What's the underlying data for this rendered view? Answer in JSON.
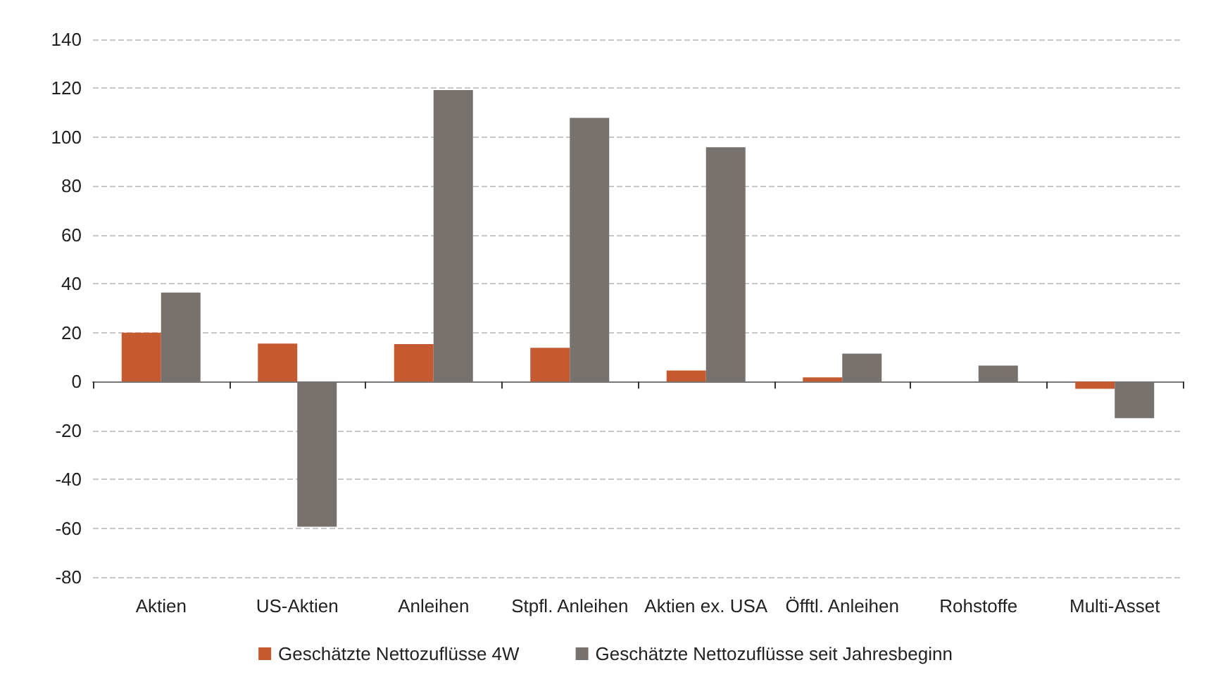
{
  "chart_data": {
    "type": "bar",
    "categories": [
      "Aktien",
      "US-Aktien",
      "Anleihen",
      "Stpfl. Anleihen",
      "Aktien ex. USA",
      "Öfftl. Anleihen",
      "Rohstoffe",
      "Multi-Asset"
    ],
    "series": [
      {
        "name": "Geschätzte Nettozuflüsse 4W",
        "color": "#c55a30",
        "values": [
          20,
          15.5,
          15.3,
          13.8,
          4.5,
          1.7,
          null,
          -3
        ]
      },
      {
        "name": "Geschätzte Nettozuflüsse seit Jahresbeginn",
        "color": "#77726e",
        "values": [
          36.4,
          -59.4,
          119.3,
          107.9,
          95.9,
          11.4,
          6.5,
          -15
        ]
      }
    ],
    "ylim": [
      -80,
      140
    ],
    "yticks": [
      -80,
      -60,
      -40,
      -20,
      0,
      20,
      40,
      60,
      80,
      100,
      120,
      140
    ],
    "grid": "y",
    "legend": "bottom"
  }
}
